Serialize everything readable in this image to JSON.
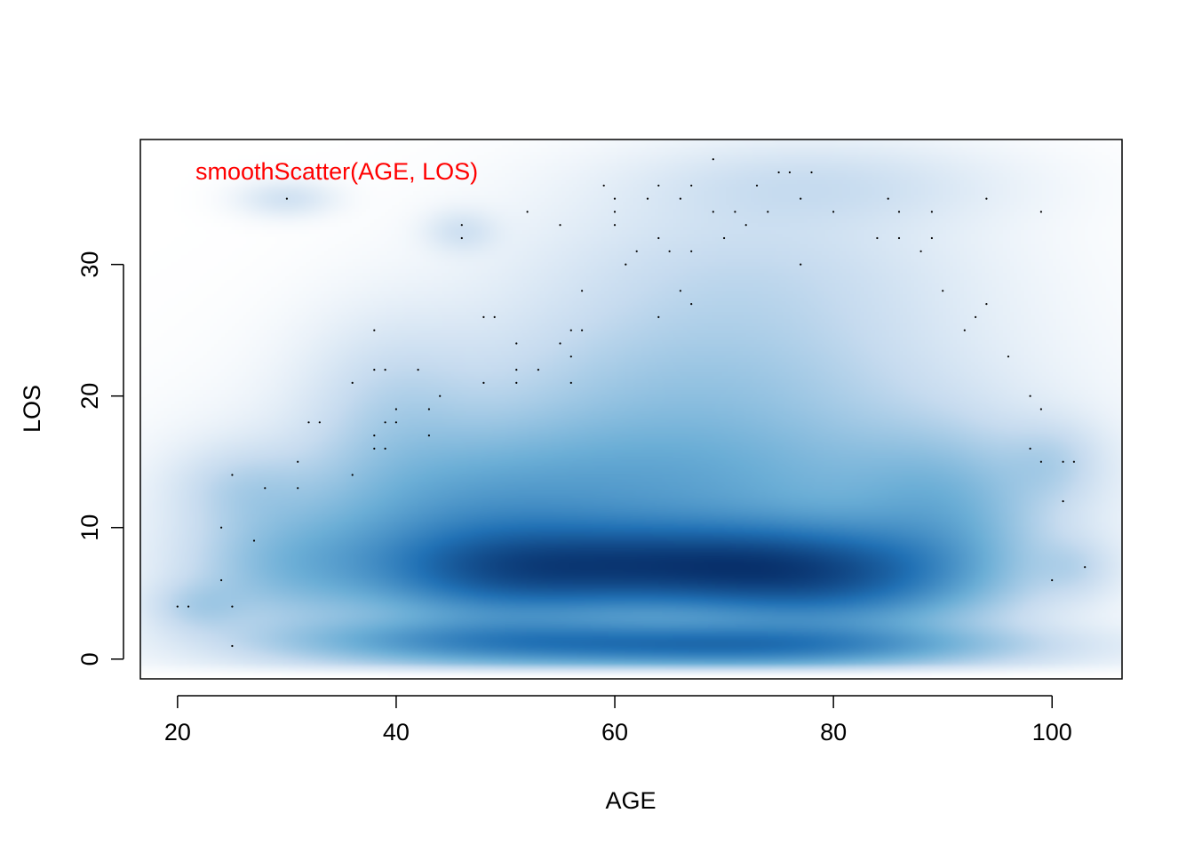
{
  "chart_data": {
    "type": "heatmap",
    "title": "",
    "annotation": {
      "text": "smoothScatter(AGE, LOS)",
      "color": "#ff0000",
      "position": "top-left"
    },
    "xlabel": "AGE",
    "ylabel": "LOS",
    "xlim": [
      16.6,
      106.4
    ],
    "ylim": [
      -1.5,
      39.5
    ],
    "x_ticks": [
      20,
      40,
      60,
      80,
      100
    ],
    "y_ticks": [
      0,
      10,
      20,
      30
    ],
    "x_tick_labels": [
      "20",
      "40",
      "60",
      "80",
      "100"
    ],
    "y_tick_labels": [
      "0",
      "10",
      "20",
      "30"
    ],
    "grid": false,
    "legend": "none",
    "color_ramp": [
      "#ffffff",
      "#c6dbef",
      "#6baed6",
      "#2171b5",
      "#08306b"
    ],
    "density_blobs": [
      {
        "x": 67,
        "y": 7,
        "sx": 11,
        "sy": 2.2,
        "w": 1.0
      },
      {
        "x": 50,
        "y": 6.5,
        "sx": 9,
        "sy": 2.4,
        "w": 0.75
      },
      {
        "x": 80,
        "y": 6,
        "sx": 9,
        "sy": 2.6,
        "w": 0.75
      },
      {
        "x": 72,
        "y": 1,
        "sx": 14,
        "sy": 1.1,
        "w": 0.8
      },
      {
        "x": 48,
        "y": 1.3,
        "sx": 12,
        "sy": 1.2,
        "w": 0.55
      },
      {
        "x": 65,
        "y": 13,
        "sx": 16,
        "sy": 4,
        "w": 0.45
      },
      {
        "x": 45,
        "y": 10,
        "sx": 10,
        "sy": 4,
        "w": 0.35
      },
      {
        "x": 90,
        "y": 11,
        "sx": 6,
        "sy": 4,
        "w": 0.3
      },
      {
        "x": 30,
        "y": 7,
        "sx": 6,
        "sy": 3,
        "w": 0.25
      },
      {
        "x": 68,
        "y": 21,
        "sx": 14,
        "sy": 4,
        "w": 0.2
      },
      {
        "x": 72,
        "y": 29,
        "sx": 12,
        "sy": 4,
        "w": 0.12
      },
      {
        "x": 78,
        "y": 36,
        "sx": 10,
        "sy": 2,
        "w": 0.1
      },
      {
        "x": 22,
        "y": 4,
        "sx": 3,
        "sy": 1.3,
        "w": 0.15
      },
      {
        "x": 40,
        "y": 19,
        "sx": 5,
        "sy": 4,
        "w": 0.12
      },
      {
        "x": 100,
        "y": 15,
        "sx": 3,
        "sy": 2,
        "w": 0.12
      },
      {
        "x": 30,
        "y": 35,
        "sx": 2.5,
        "sy": 0.8,
        "w": 0.08
      },
      {
        "x": 46,
        "y": 32.5,
        "sx": 2,
        "sy": 1,
        "w": 0.08
      },
      {
        "x": 102,
        "y": 7,
        "sx": 2.5,
        "sy": 1.5,
        "w": 0.1
      },
      {
        "x": 26,
        "y": 13,
        "sx": 4,
        "sy": 2,
        "w": 0.12
      }
    ],
    "outlier_points": [
      [
        20,
        4
      ],
      [
        21,
        4
      ],
      [
        24,
        6
      ],
      [
        24,
        10
      ],
      [
        25,
        14
      ],
      [
        25,
        4
      ],
      [
        25,
        1
      ],
      [
        27,
        9
      ],
      [
        28,
        13
      ],
      [
        30,
        35
      ],
      [
        31,
        15
      ],
      [
        31,
        13
      ],
      [
        32,
        18
      ],
      [
        33,
        18
      ],
      [
        36,
        21
      ],
      [
        36,
        14
      ],
      [
        38,
        25
      ],
      [
        38,
        22
      ],
      [
        38,
        17
      ],
      [
        38,
        16
      ],
      [
        39,
        22
      ],
      [
        39,
        18
      ],
      [
        39,
        16
      ],
      [
        40,
        19
      ],
      [
        40,
        18
      ],
      [
        42,
        22
      ],
      [
        43,
        19
      ],
      [
        43,
        17
      ],
      [
        44,
        20
      ],
      [
        46,
        33
      ],
      [
        46,
        32
      ],
      [
        48,
        21
      ],
      [
        48,
        26
      ],
      [
        49,
        26
      ],
      [
        51,
        24
      ],
      [
        51,
        22
      ],
      [
        51,
        21
      ],
      [
        52,
        34
      ],
      [
        53,
        22
      ],
      [
        55,
        33
      ],
      [
        55,
        24
      ],
      [
        56,
        25
      ],
      [
        56,
        23
      ],
      [
        56,
        21
      ],
      [
        57,
        28
      ],
      [
        57,
        25
      ],
      [
        59,
        36
      ],
      [
        60,
        35
      ],
      [
        60,
        34
      ],
      [
        60,
        33
      ],
      [
        61,
        30
      ],
      [
        62,
        31
      ],
      [
        63,
        35
      ],
      [
        64,
        36
      ],
      [
        64,
        32
      ],
      [
        64,
        26
      ],
      [
        65,
        31
      ],
      [
        66,
        35
      ],
      [
        66,
        28
      ],
      [
        67,
        36
      ],
      [
        67,
        31
      ],
      [
        67,
        27
      ],
      [
        69,
        38
      ],
      [
        69,
        34
      ],
      [
        70,
        32
      ],
      [
        71,
        34
      ],
      [
        72,
        33
      ],
      [
        73,
        36
      ],
      [
        74,
        34
      ],
      [
        75,
        37
      ],
      [
        76,
        37
      ],
      [
        77,
        35
      ],
      [
        77,
        30
      ],
      [
        78,
        37
      ],
      [
        80,
        34
      ],
      [
        84,
        32
      ],
      [
        85,
        35
      ],
      [
        86,
        34
      ],
      [
        86,
        32
      ],
      [
        88,
        31
      ],
      [
        89,
        34
      ],
      [
        89,
        32
      ],
      [
        90,
        28
      ],
      [
        92,
        25
      ],
      [
        93,
        26
      ],
      [
        94,
        35
      ],
      [
        94,
        27
      ],
      [
        96,
        23
      ],
      [
        98,
        20
      ],
      [
        98,
        16
      ],
      [
        99,
        19
      ],
      [
        99,
        15
      ],
      [
        99,
        34
      ],
      [
        100,
        6
      ],
      [
        101,
        15
      ],
      [
        101,
        12
      ],
      [
        102,
        15
      ],
      [
        103,
        7
      ]
    ]
  }
}
